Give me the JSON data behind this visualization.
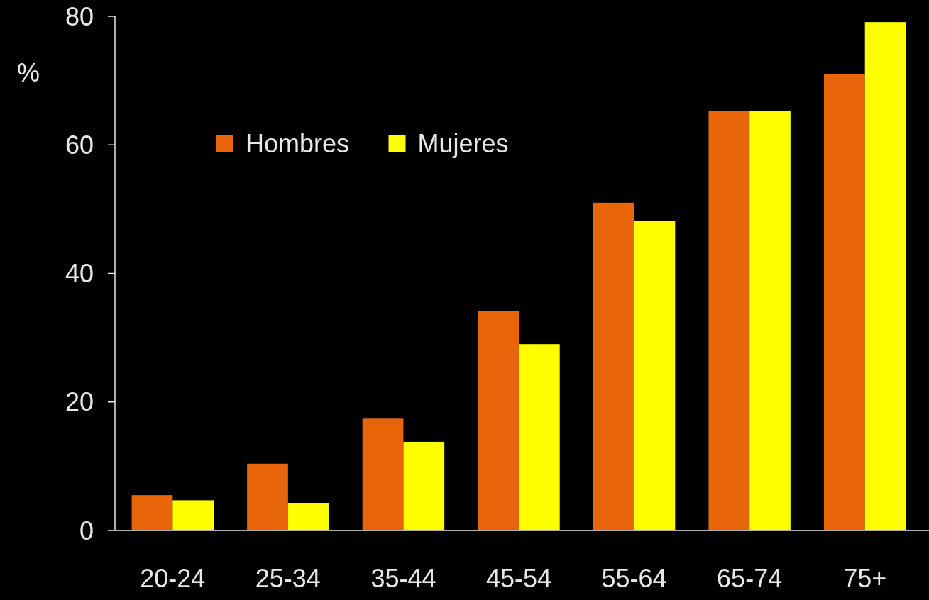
{
  "chart_data": {
    "type": "bar",
    "ylabel": "%",
    "categories": [
      "20-24",
      "25-34",
      "35-44",
      "45-54",
      "55-64",
      "65-74",
      "75+"
    ],
    "series": [
      {
        "name": "Hombres",
        "color": "#e8650a",
        "values": [
          5.5,
          10.4,
          17.4,
          34.2,
          51.0,
          65.3,
          71.0
        ]
      },
      {
        "name": "Mujeres",
        "color": "#ffff00",
        "values": [
          4.7,
          4.3,
          13.8,
          29.0,
          48.2,
          65.3,
          79.1
        ]
      }
    ],
    "ylim": [
      0,
      80
    ],
    "yticks": [
      0,
      20,
      40,
      60,
      80
    ],
    "grid": false,
    "legend": "top left"
  }
}
